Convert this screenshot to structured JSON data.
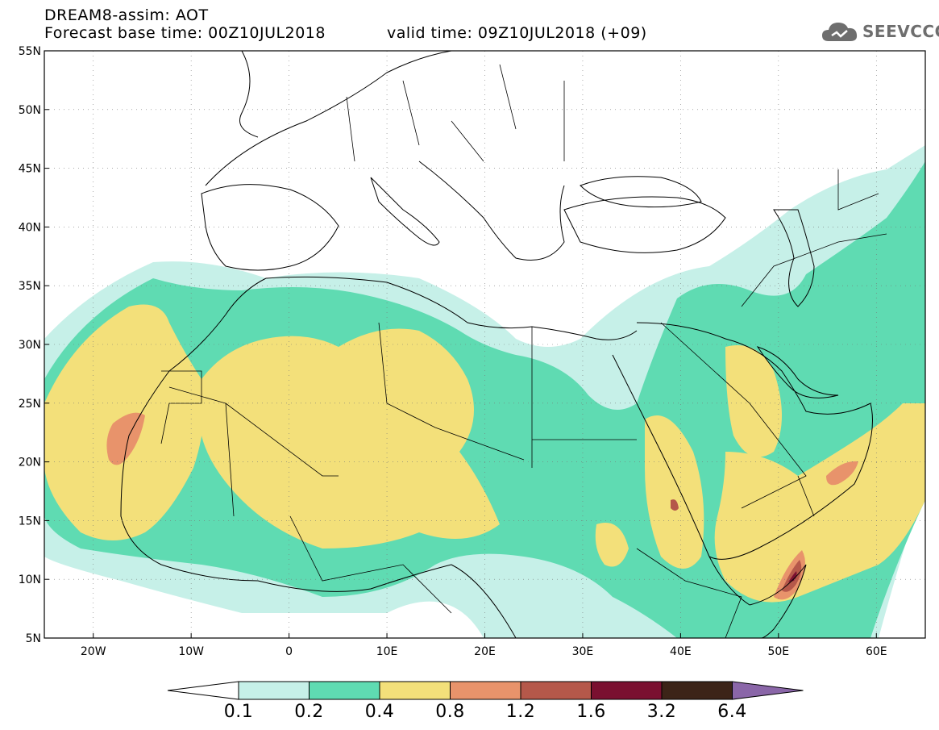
{
  "header": {
    "model_line": "DREAM8-assim: AOT",
    "base_time": "Forecast base time: 00Z10JUL2018",
    "valid_time": "valid time: 09Z10JUL2018 (+09)",
    "logo_text": "SEEVCCC",
    "logo_icon": "cloud-icon"
  },
  "map": {
    "lon_range": [
      -25,
      65
    ],
    "lat_range": [
      5,
      55
    ],
    "lat_labels": [
      "5N",
      "10N",
      "15N",
      "20N",
      "25N",
      "30N",
      "35N",
      "40N",
      "45N",
      "50N",
      "55N"
    ],
    "lon_labels": [
      "20W",
      "10W",
      "0",
      "10E",
      "20E",
      "30E",
      "40E",
      "50E",
      "60E"
    ],
    "grid": "dotted"
  },
  "colorbar": {
    "labels": [
      "0.1",
      "0.2",
      "0.4",
      "0.8",
      "1.2",
      "1.6",
      "3.2",
      "6.4"
    ],
    "colors": [
      "#c6f0e8",
      "#5fdbb2",
      "#f3e07a",
      "#e8936b",
      "#b5584a",
      "#7a1030",
      "#3c2418",
      "#8a66a8"
    ],
    "under_color": "#ffffff"
  },
  "palette": {
    "c01": "#c6f0e8",
    "c02": "#5fdbb2",
    "c04": "#f3e07a",
    "c08": "#e8936b",
    "c12": "#b5584a",
    "c16": "#7a1030"
  }
}
